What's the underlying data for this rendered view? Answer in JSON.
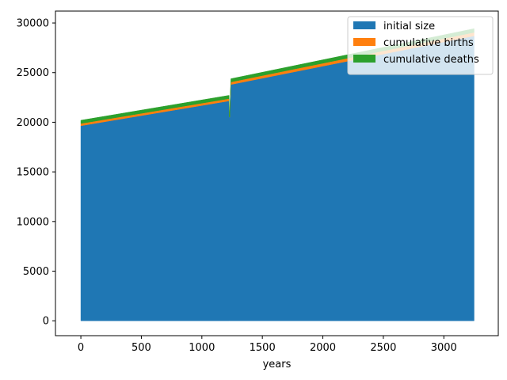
{
  "chart_data": {
    "type": "area",
    "stacked": true,
    "title": "",
    "xlabel": "years",
    "ylabel": "",
    "xlim": [
      -210,
      3450
    ],
    "ylim": [
      -1500,
      31200
    ],
    "xticks": [
      0,
      500,
      1000,
      1500,
      2000,
      2500,
      3000
    ],
    "yticks": [
      0,
      5000,
      10000,
      15000,
      20000,
      25000,
      30000
    ],
    "x": [
      0,
      1225,
      1227,
      1230,
      1240,
      3250
    ],
    "series": [
      {
        "name": "initial size",
        "color": "#1f77b4",
        "values": [
          19650,
          22150,
          20550,
          20500,
          23800,
          28700
        ]
      },
      {
        "name": "cumulative births",
        "color": "#ff7f0e",
        "values": [
          220,
          230,
          15,
          15,
          255,
          350
        ]
      },
      {
        "name": "cumulative deaths",
        "color": "#2ca02c",
        "values": [
          330,
          330,
          20,
          20,
          330,
          380
        ]
      }
    ],
    "legend_position": "top-right",
    "legend": [
      "initial size",
      "cumulative births",
      "cumulative deaths"
    ]
  }
}
